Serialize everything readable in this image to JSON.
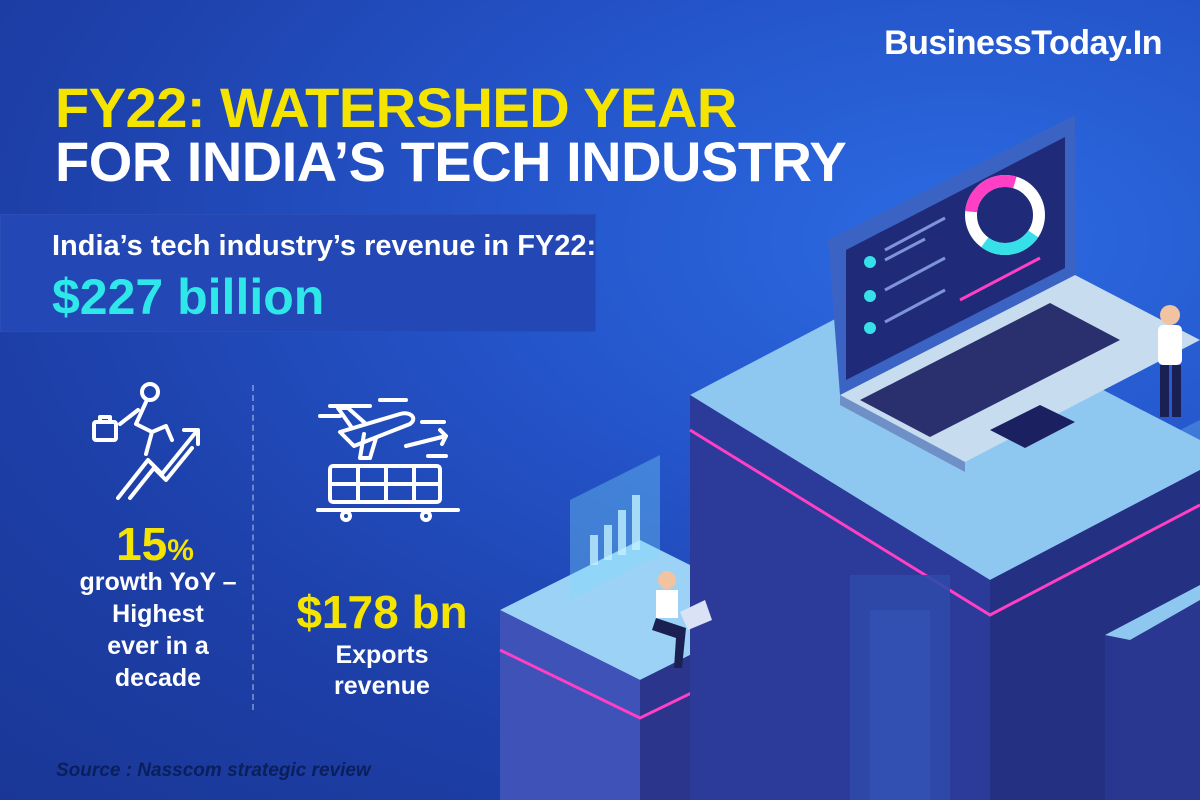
{
  "brand": "BusinessToday.In",
  "title": {
    "line1": "FY22: WATERSHED YEAR",
    "line2": "FOR INDIA’S TECH INDUSTRY"
  },
  "revenue": {
    "label": "India’s tech industry’s revenue in FY22:",
    "value": "$227 billion"
  },
  "growth": {
    "number": "15",
    "unit": "%",
    "text_lines": [
      "growth YoY –",
      "Highest",
      "ever in a",
      "decade"
    ],
    "icon": "businessman-climbing-arrow-icon"
  },
  "exports": {
    "value": "$178 bn",
    "text_lines": [
      "Exports",
      "revenue"
    ],
    "icon": "airplane-cargo-icon"
  },
  "source": "Source : Nasscom strategic review",
  "colors": {
    "background": "#2454c9",
    "accent_yellow": "#f5e400",
    "accent_cyan": "#2fe6e9",
    "accent_magenta": "#ff3fc4"
  }
}
